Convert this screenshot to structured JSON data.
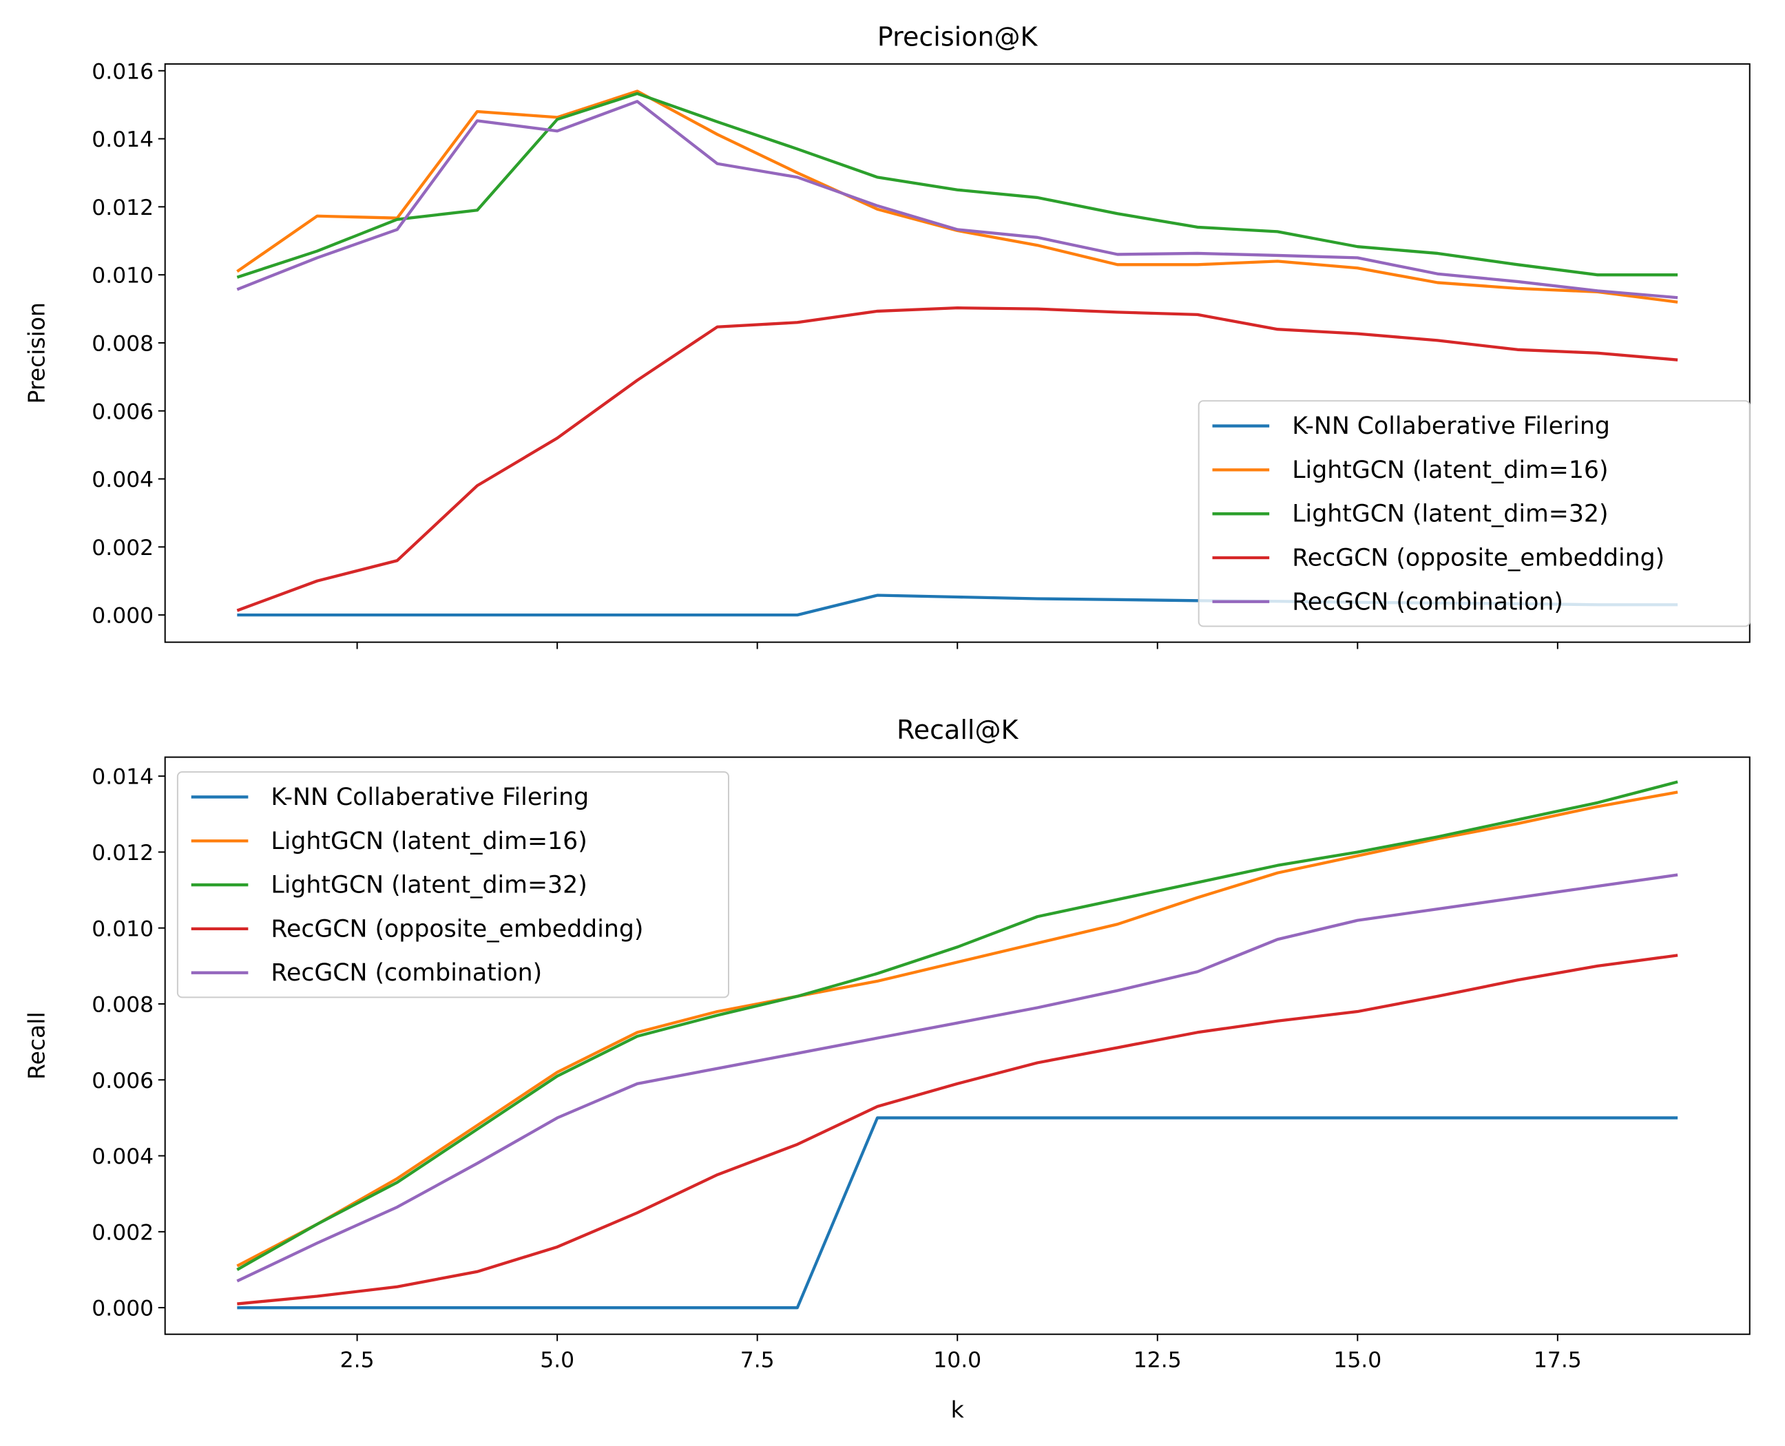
{
  "chart_data": [
    {
      "type": "line",
      "title": "Precision@K",
      "xlabel": "",
      "ylabel": "Precision",
      "xlim": [
        0.1,
        19.9
      ],
      "ylim": [
        -0.0008,
        0.0162
      ],
      "xticks": [
        2.5,
        5.0,
        7.5,
        10.0,
        12.5,
        15.0,
        17.5
      ],
      "xtick_labels_visible": false,
      "yticks": [
        "0.000",
        "0.002",
        "0.004",
        "0.006",
        "0.008",
        "0.010",
        "0.012",
        "0.014",
        "0.016"
      ],
      "legend_placement": "lower-right",
      "grid": false,
      "x": [
        1,
        2,
        3,
        4,
        5,
        6,
        7,
        8,
        9,
        10,
        11,
        12,
        13,
        14,
        15,
        16,
        17,
        18,
        19
      ],
      "series": [
        {
          "name": "K-NN Collaberative Filering",
          "color": "#1f77b4",
          "values": [
            0,
            0,
            0,
            0,
            0,
            0,
            0,
            0,
            0.00058,
            0.00053,
            0.00048,
            0.00045,
            0.00042,
            0.0004,
            0.00037,
            0.00035,
            0.00033,
            0.0003,
            0.0003
          ]
        },
        {
          "name": "LightGCN (latent_dim=16)",
          "color": "#ff7f0e",
          "values": [
            0.0101,
            0.01173,
            0.01167,
            0.0148,
            0.01463,
            0.0154,
            0.01413,
            0.013,
            0.01193,
            0.0113,
            0.01087,
            0.0103,
            0.0103,
            0.0104,
            0.0102,
            0.00977,
            0.0096,
            0.0095,
            0.0092
          ]
        },
        {
          "name": "LightGCN (latent_dim=32)",
          "color": "#2ca02c",
          "values": [
            0.00993,
            0.0107,
            0.01163,
            0.0119,
            0.01457,
            0.01533,
            0.0145,
            0.0137,
            0.01287,
            0.0125,
            0.01227,
            0.0118,
            0.0114,
            0.01127,
            0.01083,
            0.01063,
            0.0103,
            0.01,
            0.01
          ]
        },
        {
          "name": "RecGCN (opposite_embedding)",
          "color": "#d62728",
          "values": [
            0.00013,
            0.001,
            0.0016,
            0.0038,
            0.0052,
            0.0069,
            0.00847,
            0.0086,
            0.00893,
            0.00903,
            0.009,
            0.0089,
            0.00883,
            0.0084,
            0.00827,
            0.00807,
            0.0078,
            0.0077,
            0.0075
          ]
        },
        {
          "name": "RecGCN (combination)",
          "color": "#9467bd",
          "values": [
            0.00957,
            0.0105,
            0.01133,
            0.01453,
            0.01423,
            0.0151,
            0.01327,
            0.01287,
            0.01203,
            0.01133,
            0.0111,
            0.0106,
            0.01063,
            0.01057,
            0.0105,
            0.01003,
            0.0098,
            0.00953,
            0.00933
          ]
        }
      ]
    },
    {
      "type": "line",
      "title": "Recall@K",
      "xlabel": "k",
      "ylabel": "Recall",
      "xlim": [
        0.1,
        19.9
      ],
      "ylim": [
        -0.0007,
        0.0145
      ],
      "xticks": [
        "2.5",
        "5.0",
        "7.5",
        "10.0",
        "12.5",
        "15.0",
        "17.5"
      ],
      "yticks": [
        "0.000",
        "0.002",
        "0.004",
        "0.006",
        "0.008",
        "0.010",
        "0.012",
        "0.014"
      ],
      "legend_placement": "upper-left",
      "grid": false,
      "x": [
        1,
        2,
        3,
        4,
        5,
        6,
        7,
        8,
        9,
        10,
        11,
        12,
        13,
        14,
        15,
        16,
        17,
        18,
        19
      ],
      "series": [
        {
          "name": "K-NN Collaberative Filering",
          "color": "#1f77b4",
          "values": [
            0,
            0,
            0,
            0,
            0,
            0,
            0,
            0,
            0.005,
            0.005,
            0.005,
            0.005,
            0.005,
            0.005,
            0.005,
            0.005,
            0.005,
            0.005,
            0.005
          ]
        },
        {
          "name": "LightGCN (latent_dim=16)",
          "color": "#ff7f0e",
          "values": [
            0.0011,
            0.0022,
            0.0034,
            0.0048,
            0.0062,
            0.00725,
            0.0078,
            0.0082,
            0.0086,
            0.0091,
            0.0096,
            0.0101,
            0.0108,
            0.01145,
            0.0119,
            0.01235,
            0.01275,
            0.0132,
            0.01358
          ]
        },
        {
          "name": "LightGCN (latent_dim=32)",
          "color": "#2ca02c",
          "values": [
            0.001,
            0.0022,
            0.0033,
            0.0047,
            0.0061,
            0.00715,
            0.0077,
            0.0082,
            0.0088,
            0.0095,
            0.0103,
            0.01075,
            0.0112,
            0.01165,
            0.012,
            0.0124,
            0.01285,
            0.0133,
            0.01385
          ]
        },
        {
          "name": "RecGCN (opposite_embedding)",
          "color": "#d62728",
          "values": [
            0.0001,
            0.0003,
            0.00055,
            0.00095,
            0.0016,
            0.0025,
            0.0035,
            0.0043,
            0.0053,
            0.0059,
            0.00645,
            0.00685,
            0.00725,
            0.00755,
            0.0078,
            0.0082,
            0.00863,
            0.009,
            0.00928
          ]
        },
        {
          "name": "RecGCN (combination)",
          "color": "#9467bd",
          "values": [
            0.0007,
            0.0017,
            0.00265,
            0.0038,
            0.005,
            0.0059,
            0.0063,
            0.0067,
            0.0071,
            0.0075,
            0.0079,
            0.00835,
            0.00885,
            0.0097,
            0.0102,
            0.0105,
            0.0108,
            0.0111,
            0.0114
          ]
        }
      ]
    }
  ]
}
